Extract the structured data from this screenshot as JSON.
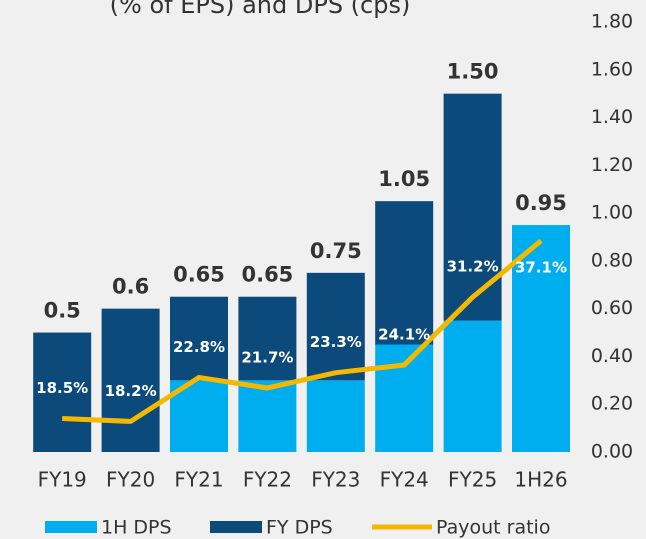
{
  "chart_data": {
    "type": "bar",
    "stacked": true,
    "title": "(% of EPS) and DPS (cps)",
    "categories": [
      "FY19",
      "FY20",
      "FY21",
      "FY22",
      "FY23",
      "FY24",
      "FY25",
      "1H26"
    ],
    "series": [
      {
        "name": "1H DPS",
        "color": "#00aeef",
        "values": [
          0,
          0,
          0.3,
          0.3,
          0.3,
          0.45,
          0.55,
          0.95
        ]
      },
      {
        "name": "FY DPS",
        "color": "#0b4a7a",
        "values": [
          0.5,
          0.6,
          0.35,
          0.35,
          0.45,
          0.6,
          0.95,
          0
        ]
      },
      {
        "name": "Payout ratio",
        "color": "#f5b800",
        "type": "line",
        "axis": "y2",
        "values": [
          18.5,
          18.2,
          22.8,
          21.7,
          23.3,
          24.1,
          31.2,
          37.1
        ],
        "value_labels": [
          "18.5%",
          "18.2%",
          "22.8%",
          "21.7%",
          "23.3%",
          "24.1%",
          "31.2%",
          "37.1%"
        ]
      }
    ],
    "total_labels": [
      "0.5",
      "0.6",
      "0.65",
      "0.65",
      "0.75",
      "1.05",
      "1.50",
      "0.95"
    ],
    "ylim": [
      0,
      1.8
    ],
    "yticks": [
      {
        "value": 0,
        "label": "0.00"
      },
      {
        "value": 0.2,
        "label": "0.20"
      },
      {
        "value": 0.4,
        "label": "0.40"
      },
      {
        "value": 0.6,
        "label": "0.60"
      },
      {
        "value": 0.8,
        "label": "0.80"
      },
      {
        "value": 1,
        "label": "1.00"
      },
      {
        "value": 1.2,
        "label": "1.20"
      },
      {
        "value": 1.4,
        "label": "1.40"
      },
      {
        "value": 1.6,
        "label": "1.60"
      },
      {
        "value": 1.8,
        "label": "1.80"
      }
    ],
    "y2lim": [
      15,
      60
    ],
    "legend": "bottom"
  }
}
